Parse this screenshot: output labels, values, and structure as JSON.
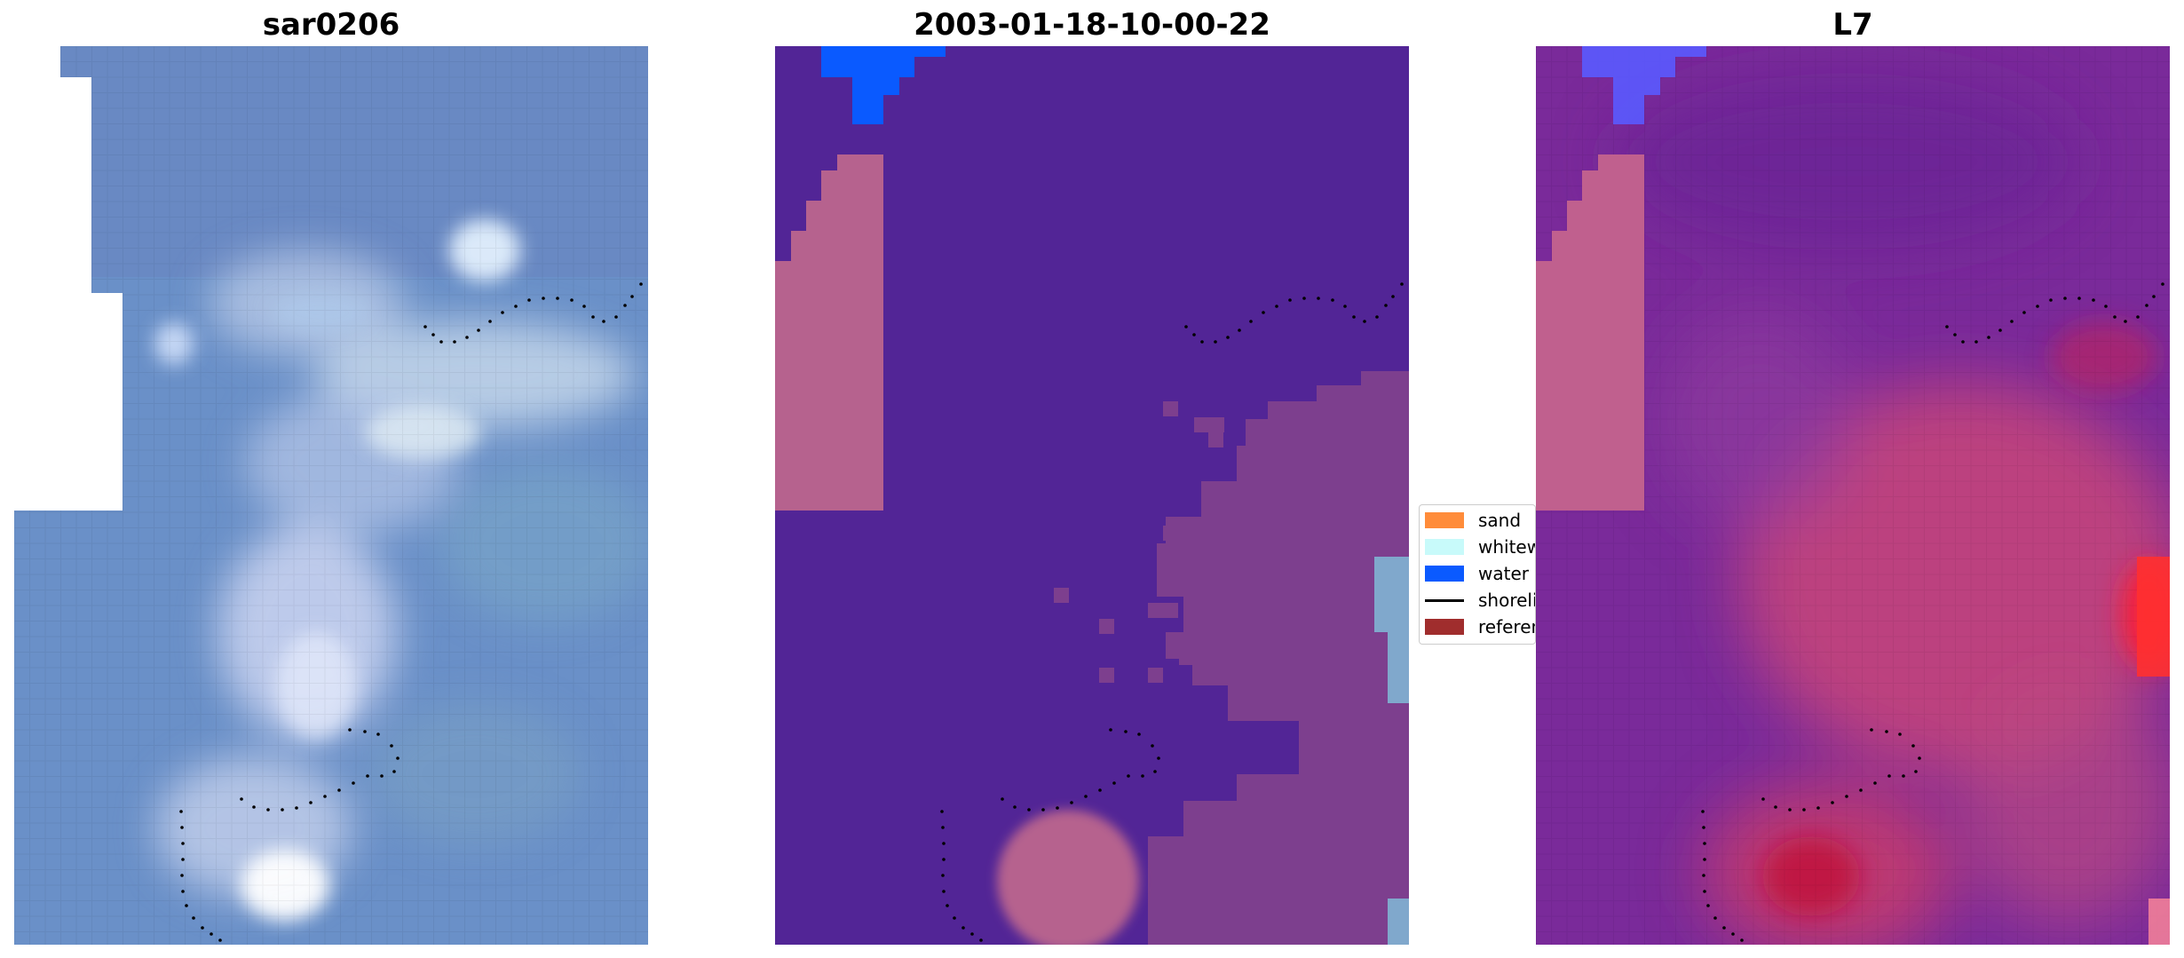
{
  "panels": [
    {
      "title": "sar0206"
    },
    {
      "title": "2003-01-18-10-00-22"
    },
    {
      "title": "L7"
    }
  ],
  "legend": {
    "items": [
      {
        "label": "sand",
        "color": "#ff8c3a",
        "kind": "patch"
      },
      {
        "label": "whitewater",
        "color": "#c8fafa",
        "kind": "patch"
      },
      {
        "label": "water",
        "color": "#0a5aff",
        "kind": "patch"
      },
      {
        "label": "shoreline",
        "color": "#000000",
        "kind": "line"
      },
      {
        "label": "reference",
        "color": "#a02d2d",
        "kind": "patch"
      }
    ]
  },
  "colors": {
    "rgb_base": "#6a90c8",
    "classified_water_region": "#522596",
    "classified_blue": "#0a5aff",
    "classified_pink": "#b6628e",
    "index_purple": "#7a2a9a",
    "index_red": "#d22a4a",
    "index_blue": "#5a5aff"
  }
}
